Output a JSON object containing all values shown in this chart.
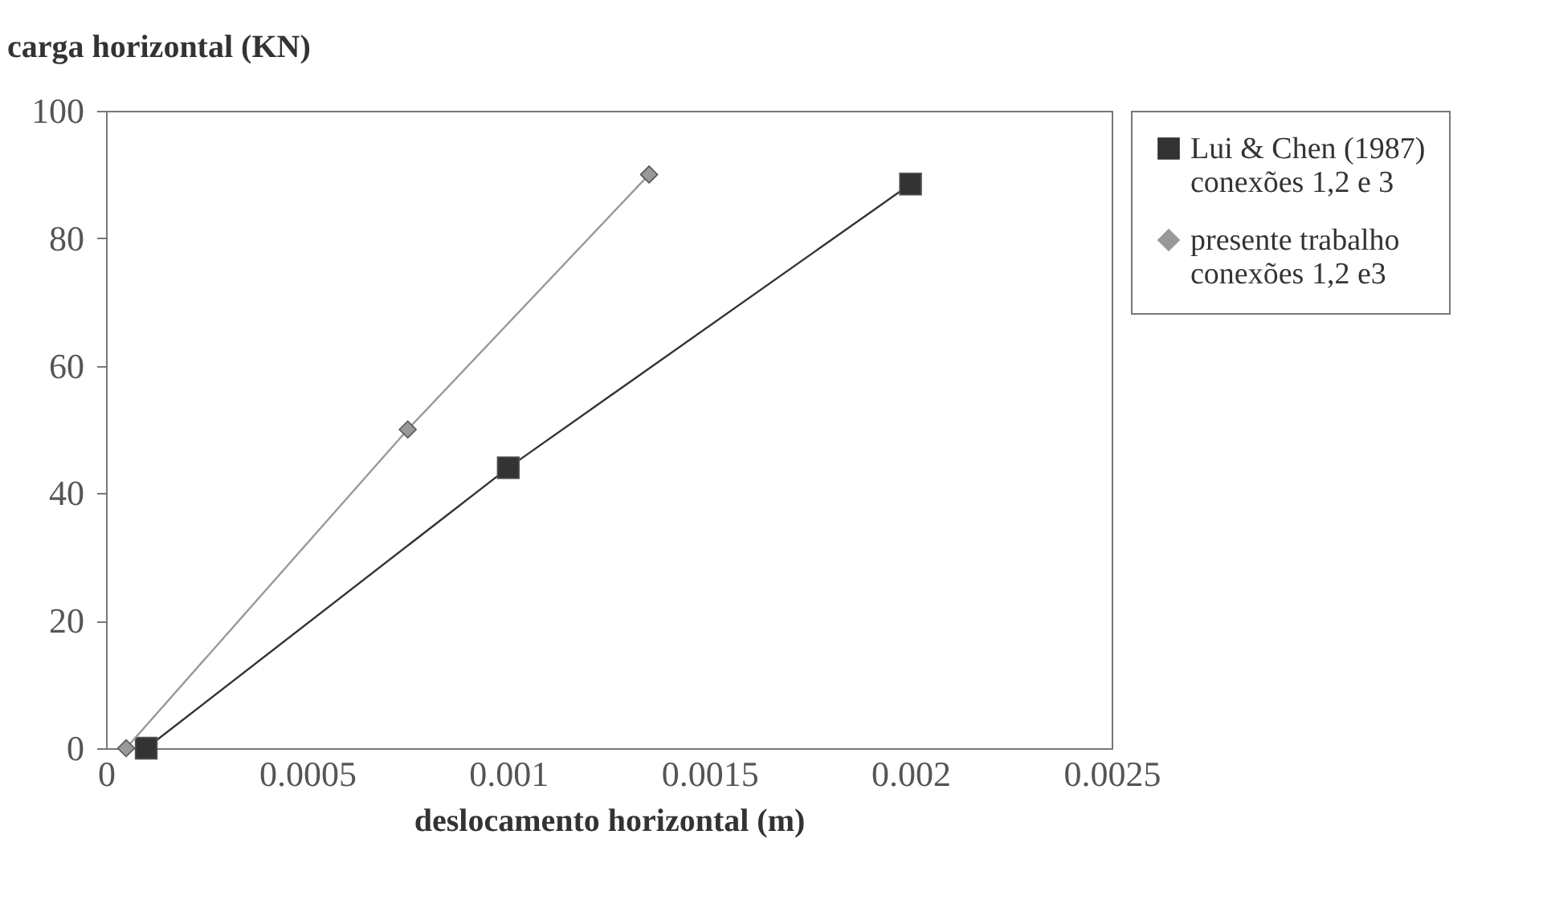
{
  "chart_data": {
    "type": "line",
    "xlabel": "deslocamento horizontal (m)",
    "ylabel": "carga horizontal (KN)",
    "xlim": [
      0,
      0.0025
    ],
    "xticks": [
      {
        "value": 0,
        "label": "0"
      },
      0.0005,
      {
        "value": 0.001,
        "label": "0.001"
      },
      0.0015,
      {
        "value": 0.002,
        "label": "0.002"
      },
      0.0025
    ],
    "ylim": [
      0,
      100
    ],
    "yticks": [
      0,
      20,
      40,
      60,
      80,
      100
    ],
    "grid": false,
    "legend": "right",
    "series": [
      {
        "name": "Lui & Chen (1987)\nconexões 1,2 e 3",
        "color": "#333333",
        "marker": "square",
        "x": [
          0.0001,
          0.001,
          0.002
        ],
        "values": [
          0,
          44,
          88.5
        ]
      },
      {
        "name": "presente trabalho\nconexões 1,2 e3",
        "color": "#999999",
        "marker": "diamond",
        "x": [
          5e-05,
          0.00075,
          0.00135
        ],
        "values": [
          0,
          50,
          90
        ]
      }
    ]
  }
}
